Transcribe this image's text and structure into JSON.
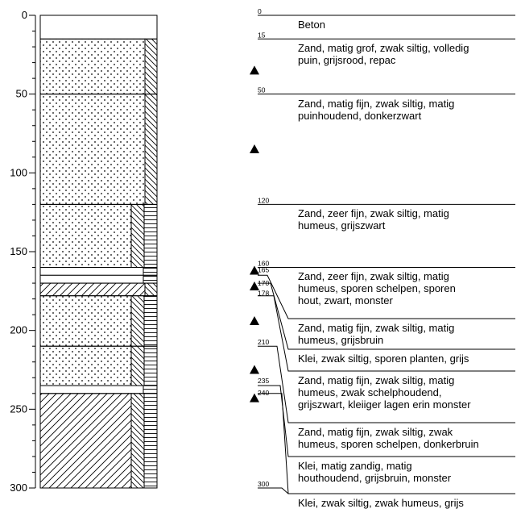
{
  "axis": {
    "ticks": [
      {
        "value": 0,
        "label": "0"
      },
      {
        "value": 50,
        "label": "50"
      },
      {
        "value": 100,
        "label": "100"
      },
      {
        "value": 150,
        "label": "150"
      },
      {
        "value": 200,
        "label": "200"
      },
      {
        "value": 250,
        "label": "250"
      },
      {
        "value": 300,
        "label": "300"
      }
    ],
    "min": 0,
    "max": 300,
    "minor_step": 10
  },
  "layers": [
    {
      "top": 0,
      "bottom": 15,
      "pattern": "blank",
      "strip": "none"
    },
    {
      "top": 15,
      "bottom": 50,
      "pattern": "dots",
      "strip": "diag"
    },
    {
      "top": 50,
      "bottom": 120,
      "pattern": "dots",
      "strip": "diag"
    },
    {
      "top": 120,
      "bottom": 160,
      "pattern": "dots",
      "strip": "diag-horiz"
    },
    {
      "top": 160,
      "bottom": 165,
      "pattern": "blank",
      "strip": "horiz-only"
    },
    {
      "top": 165,
      "bottom": 170,
      "pattern": "blank",
      "strip": "horiz-only"
    },
    {
      "top": 170,
      "bottom": 178,
      "pattern": "hatch",
      "strip": "diag"
    },
    {
      "top": 178,
      "bottom": 210,
      "pattern": "dots",
      "strip": "diag-horiz"
    },
    {
      "top": 210,
      "bottom": 235,
      "pattern": "dots",
      "strip": "diag-horiz"
    },
    {
      "top": 235,
      "bottom": 240,
      "pattern": "blank",
      "strip": "horiz-only"
    },
    {
      "top": 240,
      "bottom": 300,
      "pattern": "hatch",
      "strip": "diag-horiz"
    }
  ],
  "depth_labels": [
    {
      "value": 0,
      "label": "0"
    },
    {
      "value": 15,
      "label": "15"
    },
    {
      "value": 50,
      "label": "50"
    },
    {
      "value": 120,
      "label": "120"
    },
    {
      "value": 160,
      "label": "160"
    },
    {
      "value": 165,
      "label": "165"
    },
    {
      "value": 170,
      "label": "170"
    },
    {
      "value": 178,
      "label": "178"
    },
    {
      "value": 210,
      "label": "210"
    },
    {
      "value": 235,
      "label": "235"
    },
    {
      "value": 240,
      "label": "240"
    },
    {
      "value": 300,
      "label": "300"
    }
  ],
  "samples": [
    35,
    85,
    162,
    172,
    194,
    225,
    243
  ],
  "descriptions": [
    {
      "lines": [
        "Beton"
      ]
    },
    {
      "lines": [
        "Zand, matig grof, zwak siltig, volledig",
        "puin, grijsrood, repac"
      ]
    },
    {
      "lines": [
        "Zand, matig fijn, zwak siltig, matig",
        "puinhoudend, donkerzwart"
      ]
    },
    {
      "lines": [
        "Zand, zeer fijn, zwak siltig, matig",
        "humeus, grijszwart"
      ]
    },
    {
      "lines": [
        "Zand, zeer fijn, zwak siltig, matig",
        "humeus, sporen schelpen, sporen",
        "hout, zwart, monster"
      ]
    },
    {
      "lines": [
        "Zand, matig fijn, zwak siltig, matig",
        "humeus, grijsbruin"
      ]
    },
    {
      "lines": [
        "Klei, zwak siltig, sporen planten, grijs"
      ]
    },
    {
      "lines": [
        "Zand, matig fijn, zwak siltig, matig",
        "humeus, zwak schelphoudend,",
        "grijszwart, kleiiger lagen erin monster"
      ]
    },
    {
      "lines": [
        "Zand, matig fijn, zwak siltig, zwak",
        "humeus, sporen schelpen, donkerbruin"
      ]
    },
    {
      "lines": [
        "Klei, matig zandig, matig",
        "houthoudend, grijsbruin, monster"
      ]
    },
    {
      "lines": [
        "Klei, zwak siltig, zwak humeus, grijs"
      ]
    }
  ]
}
